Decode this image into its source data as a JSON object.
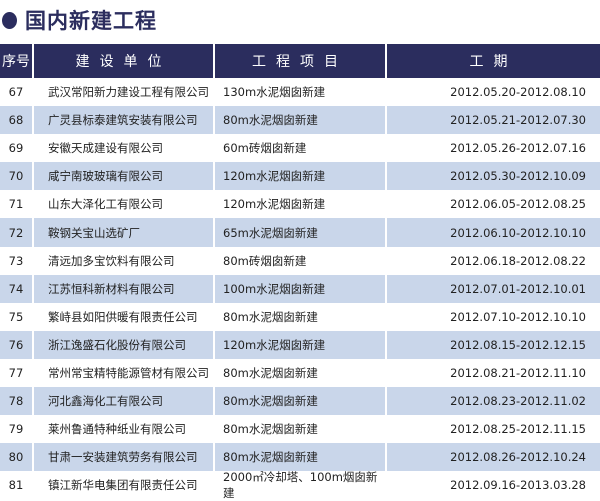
{
  "title": "国内新建工程",
  "headers": [
    "序号",
    "建设单位",
    "工程项目",
    "工期"
  ],
  "rows": [
    {
      "no": "67",
      "company": "武汉常阳新力建设工程有限公司",
      "project": "130m水泥烟囱新建",
      "period": "2012.05.20-2012.08.10"
    },
    {
      "no": "68",
      "company": "广灵县标泰建筑安装有限公司",
      "project": "80m水泥烟囱新建",
      "period": "2012.05.21-2012.07.30"
    },
    {
      "no": "69",
      "company": "安徽天成建设有限公司",
      "project": "60m砖烟囱新建",
      "period": "2012.05.26-2012.07.16"
    },
    {
      "no": "70",
      "company": "咸宁南玻玻璃有限公司",
      "project": "120m水泥烟囱新建",
      "period": "2012.05.30-2012.10.09"
    },
    {
      "no": "71",
      "company": "山东大泽化工有限公司",
      "project": "120m水泥烟囱新建",
      "period": "2012.06.05-2012.08.25"
    },
    {
      "no": "72",
      "company": "鞍钢关宝山选矿厂",
      "project": "65m水泥烟囱新建",
      "period": "2012.06.10-2012.10.10"
    },
    {
      "no": "73",
      "company": "清远加多宝饮料有限公司",
      "project": "80m砖烟囱新建",
      "period": "2012.06.18-2012.08.22"
    },
    {
      "no": "74",
      "company": "江苏恒科新材料有限公司",
      "project": "100m水泥烟囱新建",
      "period": "2012.07.01-2012.10.01"
    },
    {
      "no": "75",
      "company": "繁峙县如阳供暖有限责任公司",
      "project": "80m水泥烟囱新建",
      "period": "2012.07.10-2012.10.10"
    },
    {
      "no": "76",
      "company": "浙江逸盛石化股份有限公司",
      "project": "120m水泥烟囱新建",
      "period": "2012.08.15-2012.12.15"
    },
    {
      "no": "77",
      "company": "常州常宝精特能源管材有限公司",
      "project": "80m水泥烟囱新建",
      "period": "2012.08.21-2012.11.10"
    },
    {
      "no": "78",
      "company": "河北鑫海化工有限公司",
      "project": "80m水泥烟囱新建",
      "period": "2012.08.23-2012.11.02"
    },
    {
      "no": "79",
      "company": "莱州鲁通特种纸业有限公司",
      "project": "80m水泥烟囱新建",
      "period": "2012.08.25-2012.11.15"
    },
    {
      "no": "80",
      "company": "甘肃一安装建筑劳务有限公司",
      "project": "80m水泥烟囱新建",
      "period": "2012.08.26-2012.10.24"
    },
    {
      "no": "81",
      "company": "镇江新华电集团有限责任公司",
      "project": "2000㎡冷却塔、100m烟囱新建",
      "period": "2012.09.16-2013.03.28"
    }
  ],
  "colors": {
    "header_bg": "#2b2d5e",
    "alt_row": "#c9d6ea"
  }
}
